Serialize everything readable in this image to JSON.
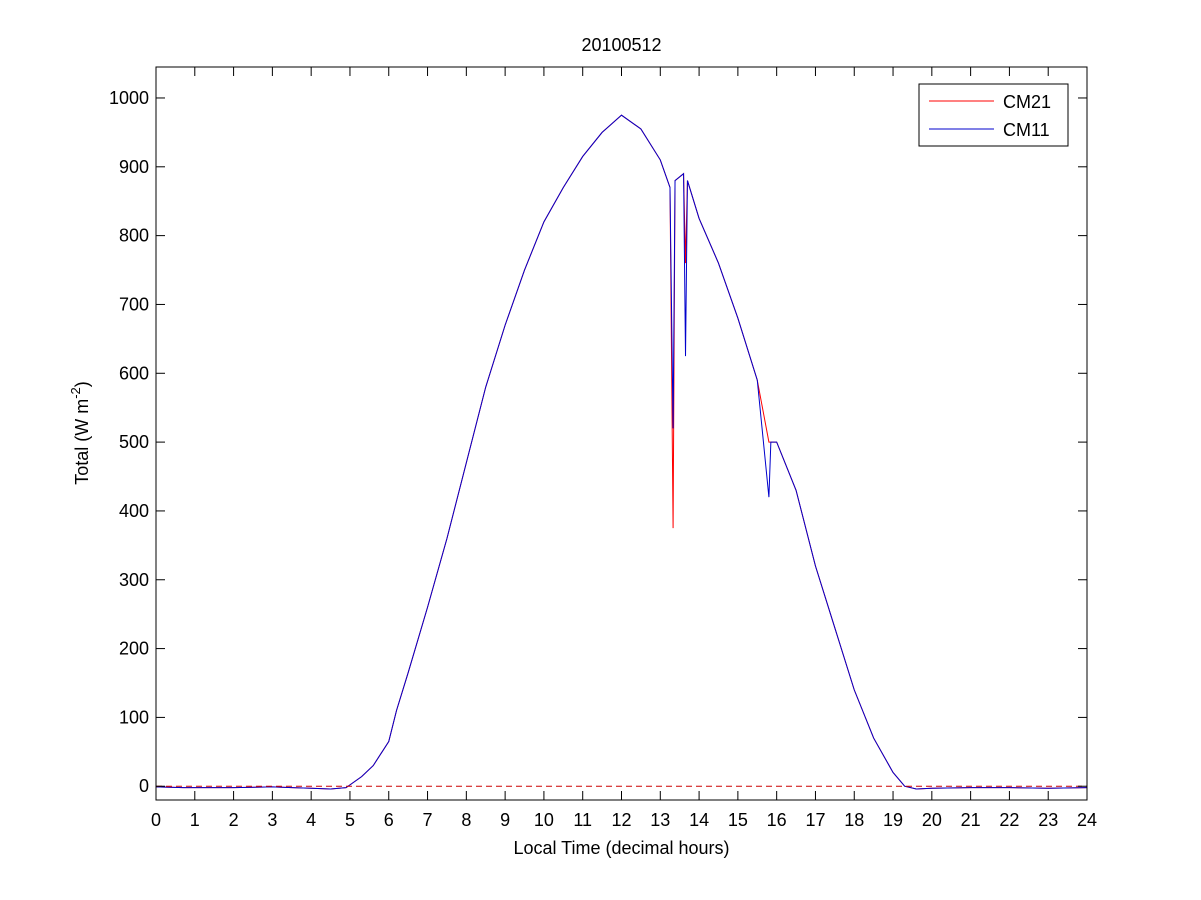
{
  "chart_data": {
    "type": "line",
    "title": "20100512",
    "xlabel": "Local Time (decimal hours)",
    "ylabel": {
      "text_before": "Total (W m",
      "superscript": "-2",
      "text_after": ")"
    },
    "xlim": [
      0,
      24
    ],
    "ylim": [
      -20,
      1045
    ],
    "xticks": [
      0,
      1,
      2,
      3,
      4,
      5,
      6,
      7,
      8,
      9,
      10,
      11,
      12,
      13,
      14,
      15,
      16,
      17,
      18,
      19,
      20,
      21,
      22,
      23,
      24
    ],
    "yticks": [
      0,
      100,
      200,
      300,
      400,
      500,
      600,
      700,
      800,
      900,
      1000
    ],
    "grid": false,
    "legend_position": "top-right",
    "reference_line": {
      "y": 0,
      "style": "dashed",
      "color": "#cc0000"
    },
    "series": [
      {
        "name": "CM21",
        "color": "#ff0000",
        "points": [
          [
            0,
            -1
          ],
          [
            0.7,
            -2
          ],
          [
            2,
            -2
          ],
          [
            3,
            -1
          ],
          [
            3.5,
            -2
          ],
          [
            4,
            -3
          ],
          [
            4.5,
            -4
          ],
          [
            4.9,
            -2
          ],
          [
            5.0,
            2
          ],
          [
            5.3,
            14
          ],
          [
            5.6,
            30
          ],
          [
            6.0,
            65
          ],
          [
            6.2,
            110
          ],
          [
            6.5,
            165
          ],
          [
            7.0,
            260
          ],
          [
            7.5,
            360
          ],
          [
            8.0,
            470
          ],
          [
            8.5,
            580
          ],
          [
            9.0,
            670
          ],
          [
            9.5,
            750
          ],
          [
            10.0,
            820
          ],
          [
            10.5,
            870
          ],
          [
            11.0,
            915
          ],
          [
            11.5,
            950
          ],
          [
            12.0,
            975
          ],
          [
            12.5,
            955
          ],
          [
            13.0,
            910
          ],
          [
            13.25,
            870
          ],
          [
            13.33,
            375
          ],
          [
            13.38,
            880
          ],
          [
            13.6,
            890
          ],
          [
            13.65,
            760
          ],
          [
            13.7,
            880
          ],
          [
            14.0,
            825
          ],
          [
            14.5,
            760
          ],
          [
            15.0,
            680
          ],
          [
            15.5,
            590
          ],
          [
            15.8,
            500
          ],
          [
            16.0,
            500
          ],
          [
            16.5,
            430
          ],
          [
            17.0,
            320
          ],
          [
            17.5,
            230
          ],
          [
            18.0,
            140
          ],
          [
            18.5,
            70
          ],
          [
            19.0,
            20
          ],
          [
            19.3,
            0
          ],
          [
            19.6,
            -4
          ],
          [
            20.0,
            -3
          ],
          [
            21.0,
            -2
          ],
          [
            22.0,
            -2
          ],
          [
            23.0,
            -3
          ],
          [
            24.0,
            -2
          ]
        ]
      },
      {
        "name": "CM11",
        "color": "#0000cc",
        "points": [
          [
            0,
            -1
          ],
          [
            0.7,
            -2
          ],
          [
            2,
            -2
          ],
          [
            3,
            -1
          ],
          [
            3.5,
            -2
          ],
          [
            4,
            -3
          ],
          [
            4.5,
            -4
          ],
          [
            4.9,
            -2
          ],
          [
            5.0,
            2
          ],
          [
            5.3,
            14
          ],
          [
            5.6,
            30
          ],
          [
            6.0,
            65
          ],
          [
            6.2,
            110
          ],
          [
            6.5,
            165
          ],
          [
            7.0,
            260
          ],
          [
            7.5,
            360
          ],
          [
            8.0,
            470
          ],
          [
            8.5,
            580
          ],
          [
            9.0,
            670
          ],
          [
            9.5,
            750
          ],
          [
            10.0,
            820
          ],
          [
            10.5,
            870
          ],
          [
            11.0,
            915
          ],
          [
            11.5,
            950
          ],
          [
            12.0,
            975
          ],
          [
            12.5,
            955
          ],
          [
            13.0,
            910
          ],
          [
            13.25,
            870
          ],
          [
            13.33,
            520
          ],
          [
            13.38,
            880
          ],
          [
            13.6,
            890
          ],
          [
            13.65,
            625
          ],
          [
            13.7,
            880
          ],
          [
            14.0,
            825
          ],
          [
            14.5,
            760
          ],
          [
            15.0,
            680
          ],
          [
            15.5,
            590
          ],
          [
            15.8,
            420
          ],
          [
            15.85,
            500
          ],
          [
            16.0,
            500
          ],
          [
            16.5,
            430
          ],
          [
            17.0,
            320
          ],
          [
            17.5,
            230
          ],
          [
            18.0,
            140
          ],
          [
            18.5,
            70
          ],
          [
            19.0,
            20
          ],
          [
            19.3,
            0
          ],
          [
            19.6,
            -4
          ],
          [
            20.0,
            -3
          ],
          [
            21.0,
            -2
          ],
          [
            22.0,
            -2
          ],
          [
            23.0,
            -3
          ],
          [
            24.0,
            -2
          ]
        ]
      }
    ]
  }
}
